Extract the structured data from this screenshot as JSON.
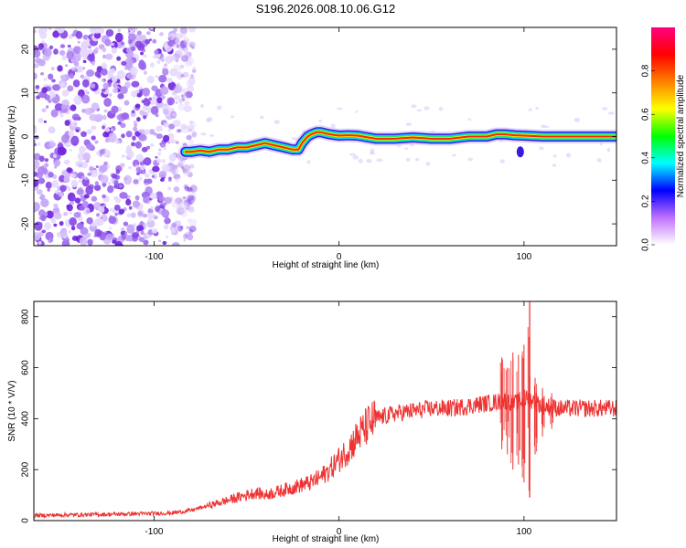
{
  "title": "S196.2026.008.10.06.G12",
  "chart_data": [
    {
      "type": "heatmap",
      "panel": "spectrogram",
      "xlabel": "Height of straight line (km)",
      "ylabel": "Frequency (Hz)",
      "xlim": [
        -165,
        150
      ],
      "ylim": [
        -25,
        25
      ],
      "xticks": [
        -100,
        0,
        100
      ],
      "yticks": [
        -20,
        -10,
        0,
        10,
        20
      ],
      "grid": false,
      "noise_region_x": [
        -165,
        -82
      ],
      "ridge": {
        "x": [
          -83,
          -80,
          -75,
          -70,
          -65,
          -60,
          -55,
          -50,
          -45,
          -40,
          -35,
          -30,
          -25,
          -22,
          -20,
          -17,
          -15,
          -12,
          -10,
          -5,
          0,
          5,
          10,
          20,
          30,
          40,
          50,
          60,
          70,
          80,
          85,
          90,
          95,
          100,
          110,
          120,
          130,
          140,
          150
        ],
        "y": [
          -3.5,
          -3.5,
          -3.2,
          -3.5,
          -3.0,
          -3.0,
          -2.5,
          -2.5,
          -2.0,
          -1.5,
          -2.0,
          -2.5,
          -3.0,
          -3.0,
          -1.5,
          0,
          0.5,
          1.0,
          1.0,
          0.5,
          0.2,
          0.3,
          0.2,
          -0.5,
          -0.5,
          -0.2,
          -0.5,
          -0.5,
          0,
          0,
          0.5,
          0.5,
          0.3,
          0.2,
          0,
          0,
          0,
          0,
          0
        ]
      },
      "colorbar": {
        "label": "Normalized spectral amplitude",
        "range": [
          0.0,
          1.0
        ],
        "ticks": [
          "0.0",
          "0.2",
          "0.4",
          "0.6",
          "0.8"
        ],
        "colors": [
          "#ffffff",
          "#c070ff",
          "#0000ff",
          "#00ffff",
          "#00ff00",
          "#ffff00",
          "#ff8000",
          "#ff0000",
          "#ff0080"
        ]
      }
    },
    {
      "type": "line",
      "panel": "snr",
      "xlabel": "Height of straight line (km)",
      "ylabel": "SNR (10 * V/V)",
      "xlim": [
        -165,
        150
      ],
      "ylim": [
        0,
        860
      ],
      "xticks": [
        -100,
        0,
        100
      ],
      "yticks": [
        0,
        200,
        400,
        600,
        800
      ],
      "grid": false,
      "series": [
        {
          "name": "SNR",
          "color": "#ee3333",
          "x": [
            -165,
            -150,
            -120,
            -100,
            -90,
            -80,
            -70,
            -60,
            -50,
            -45,
            -40,
            -35,
            -30,
            -25,
            -20,
            -15,
            -10,
            -5,
            0,
            5,
            10,
            15,
            20,
            25,
            30,
            40,
            50,
            60,
            70,
            80,
            90,
            95,
            100,
            102,
            105,
            110,
            120,
            130,
            140,
            150
          ],
          "values": [
            20,
            22,
            25,
            28,
            30,
            40,
            60,
            80,
            100,
            110,
            100,
            110,
            120,
            130,
            140,
            150,
            170,
            200,
            240,
            280,
            330,
            370,
            400,
            410,
            420,
            430,
            440,
            440,
            450,
            460,
            470,
            460,
            470,
            480,
            470,
            450,
            440,
            440,
            440,
            440
          ]
        }
      ],
      "spikes": [
        {
          "x": 88,
          "range": [
            280,
            640
          ]
        },
        {
          "x": 91,
          "range": [
            260,
            600
          ]
        },
        {
          "x": 94,
          "range": [
            200,
            660
          ]
        },
        {
          "x": 97,
          "range": [
            220,
            650
          ]
        },
        {
          "x": 100,
          "range": [
            150,
            690
          ]
        },
        {
          "x": 103,
          "range": [
            90,
            860
          ]
        },
        {
          "x": 106,
          "range": [
            260,
            560
          ]
        },
        {
          "x": 110,
          "range": [
            330,
            520
          ]
        },
        {
          "x": 115,
          "range": [
            360,
            500
          ]
        }
      ]
    }
  ]
}
